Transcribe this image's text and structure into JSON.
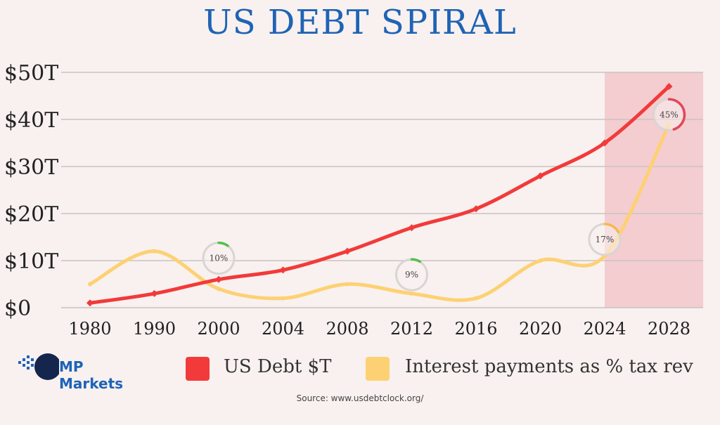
{
  "title": "US DEBT SPIRAL",
  "brand": {
    "name": "MP Markets",
    "color": "#1d63b8"
  },
  "source": "Source: www.usdebtclock.org/",
  "colors": {
    "debt": "#f23a3a",
    "interest": "#fdd173",
    "highlight": "#f2c4c8",
    "grid": "#c7c3c2"
  },
  "chart_data": {
    "type": "line",
    "title": "US DEBT SPIRAL",
    "categories": [
      "1980",
      "1990",
      "2000",
      "2004",
      "2008",
      "2012",
      "2016",
      "2020",
      "2024",
      "2028"
    ],
    "ylim": [
      0,
      50
    ],
    "yticks": [
      {
        "label": "$0",
        "value": 0
      },
      {
        "label": "$10T",
        "value": 10
      },
      {
        "label": "$20T",
        "value": 20
      },
      {
        "label": "$30T",
        "value": 30
      },
      {
        "label": "$40T",
        "value": 40
      },
      {
        "label": "$50T",
        "value": 50
      }
    ],
    "grid": true,
    "legend_position": "bottom",
    "highlight_range": [
      "2024",
      "2028"
    ],
    "series": [
      {
        "name": "US Debt $T",
        "values": [
          1,
          3,
          6,
          8,
          12,
          17,
          21,
          28,
          35,
          47
        ]
      },
      {
        "name": "Interest payments as % tax rev",
        "values": [
          5,
          12,
          4,
          2,
          5,
          3,
          2,
          10,
          11,
          39
        ]
      }
    ],
    "annotations": [
      {
        "label": "10%",
        "category": "2000",
        "value": 10.5,
        "progress": 0.1,
        "ring_color": "#54c04a"
      },
      {
        "label": "9%",
        "category": "2012",
        "value": 7,
        "progress": 0.09,
        "ring_color": "#54c04a"
      },
      {
        "label": "17%",
        "category": "2024",
        "value": 14.5,
        "progress": 0.17,
        "ring_color": "#f6b84a"
      },
      {
        "label": "45%",
        "category": "2028",
        "value": 41,
        "progress": 0.45,
        "ring_color": "#e2455a"
      }
    ]
  }
}
